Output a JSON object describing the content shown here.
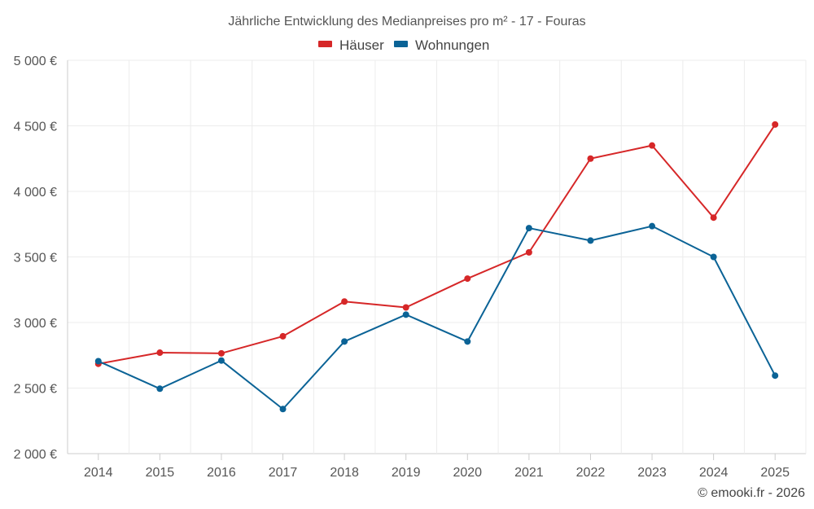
{
  "chart_data": {
    "type": "line",
    "title": "Jährliche Entwicklung des Medianpreises pro m² - 17 - Fouras",
    "categories": [
      "2014",
      "2015",
      "2016",
      "2017",
      "2018",
      "2019",
      "2020",
      "2021",
      "2022",
      "2023",
      "2024",
      "2025"
    ],
    "series": [
      {
        "name": "Häuser",
        "color": "#d62728",
        "values": [
          2685,
          2770,
          2765,
          2895,
          3160,
          3115,
          3335,
          3535,
          4250,
          4350,
          3800,
          4510
        ]
      },
      {
        "name": "Wohnungen",
        "color": "#0b6396",
        "values": [
          2705,
          2495,
          2710,
          2340,
          2855,
          3060,
          2855,
          3720,
          3625,
          3735,
          3500,
          2595
        ]
      }
    ],
    "ylim": [
      2000,
      5000
    ],
    "yticks": [
      2000,
      2500,
      3000,
      3500,
      4000,
      4500,
      5000
    ],
    "ytick_labels": [
      "2 000 €",
      "2 500 €",
      "3 000 €",
      "3 500 €",
      "4 000 €",
      "4 500 €",
      "5 000 €"
    ],
    "grid": true,
    "legend_position": "top-center",
    "xlabel": "",
    "ylabel": ""
  },
  "credit": "© emooki.fr - 2026"
}
